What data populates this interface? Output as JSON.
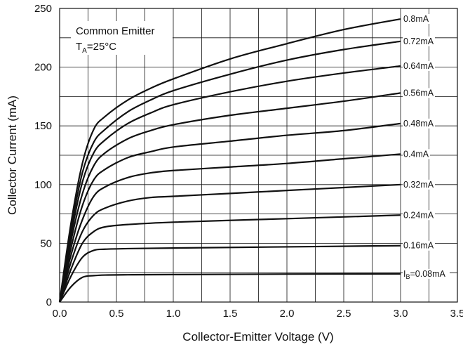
{
  "chart_data": {
    "type": "line",
    "xlabel": "Collector-Emitter Voltage (V)",
    "ylabel": "Collector Current (mA)",
    "xlim": [
      0,
      3.5
    ],
    "ylim": [
      0,
      250
    ],
    "xticks": [
      "0.0",
      "0.5",
      "1.0",
      "1.5",
      "2.0",
      "2.5",
      "3.0",
      "3.5"
    ],
    "yticks": [
      "0",
      "50",
      "100",
      "150",
      "200",
      "250"
    ],
    "grid": true,
    "annotation": {
      "line1": "Common Emitter",
      "line2_main": "T",
      "line2_sub": "A",
      "line2_rest": "=25°C"
    },
    "series": [
      {
        "name": "0.08mA",
        "label_prefix": "I",
        "label_sub": "B",
        "label_rest": "=0.08mA",
        "x": [
          0,
          0.1,
          0.2,
          0.3,
          0.4,
          0.6,
          1.0,
          2.0,
          3.0
        ],
        "y": [
          0,
          13,
          21,
          22.5,
          23,
          23.2,
          23.4,
          23.8,
          24
        ]
      },
      {
        "name": "0.16mA",
        "label": "0.16mA",
        "x": [
          0,
          0.1,
          0.2,
          0.3,
          0.4,
          0.6,
          1.0,
          2.0,
          3.0
        ],
        "y": [
          0,
          22,
          38,
          44,
          45,
          45.5,
          46,
          47,
          48
        ]
      },
      {
        "name": "0.24mA",
        "label": "0.24mA",
        "x": [
          0,
          0.1,
          0.2,
          0.3,
          0.4,
          0.6,
          1.0,
          2.0,
          3.0
        ],
        "y": [
          0,
          28,
          50,
          60,
          64,
          66,
          68,
          71,
          74
        ]
      },
      {
        "name": "0.32mA",
        "label": "0.32mA",
        "x": [
          0,
          0.1,
          0.2,
          0.3,
          0.4,
          0.6,
          0.8,
          1.0,
          1.5,
          2.0,
          2.5,
          3.0
        ],
        "y": [
          0,
          34,
          60,
          74,
          80,
          86,
          89,
          90,
          92.5,
          95,
          97.5,
          100
        ]
      },
      {
        "name": "0.4mA",
        "label": "0.4mA",
        "x": [
          0,
          0.1,
          0.2,
          0.3,
          0.4,
          0.6,
          0.8,
          1.0,
          1.5,
          2.0,
          2.5,
          3.0
        ],
        "y": [
          0,
          40,
          70,
          90,
          98,
          106,
          110,
          112,
          115,
          118,
          122,
          126
        ]
      },
      {
        "name": "0.48mA",
        "label": "0.48mA",
        "x": [
          0,
          0.1,
          0.2,
          0.3,
          0.4,
          0.6,
          0.8,
          1.0,
          1.5,
          2.0,
          2.5,
          3.0
        ],
        "y": [
          0,
          46,
          82,
          104,
          113,
          123,
          128,
          132,
          137,
          142,
          146,
          152
        ]
      },
      {
        "name": "0.56mA",
        "label": "0.56mA",
        "x": [
          0,
          0.1,
          0.2,
          0.3,
          0.4,
          0.6,
          0.8,
          1.0,
          1.5,
          2.0,
          2.5,
          3.0
        ],
        "y": [
          0,
          52,
          92,
          116,
          127,
          139,
          146,
          151,
          159,
          165,
          171,
          178
        ]
      },
      {
        "name": "0.64mA",
        "label": "0.64mA",
        "x": [
          0,
          0.1,
          0.2,
          0.3,
          0.4,
          0.6,
          0.8,
          1.0,
          1.5,
          2.0,
          2.5,
          3.0
        ],
        "y": [
          0,
          57,
          102,
          127,
          138,
          152,
          161,
          168,
          179,
          188,
          195,
          201
        ]
      },
      {
        "name": "0.72mA",
        "label": "0.72mA",
        "x": [
          0,
          0.1,
          0.2,
          0.3,
          0.4,
          0.6,
          0.8,
          1.0,
          1.5,
          2.0,
          2.5,
          3.0
        ],
        "y": [
          0,
          62,
          110,
          136,
          147,
          162,
          172,
          180,
          194,
          206,
          215,
          222
        ]
      },
      {
        "name": "0.8mA",
        "label": "0.8mA",
        "x": [
          0,
          0.1,
          0.2,
          0.3,
          0.4,
          0.6,
          0.8,
          1.0,
          1.5,
          2.0,
          2.5,
          3.0
        ],
        "y": [
          0,
          67,
          118,
          147,
          158,
          172,
          182,
          190,
          207,
          220,
          232,
          241
        ]
      }
    ]
  }
}
